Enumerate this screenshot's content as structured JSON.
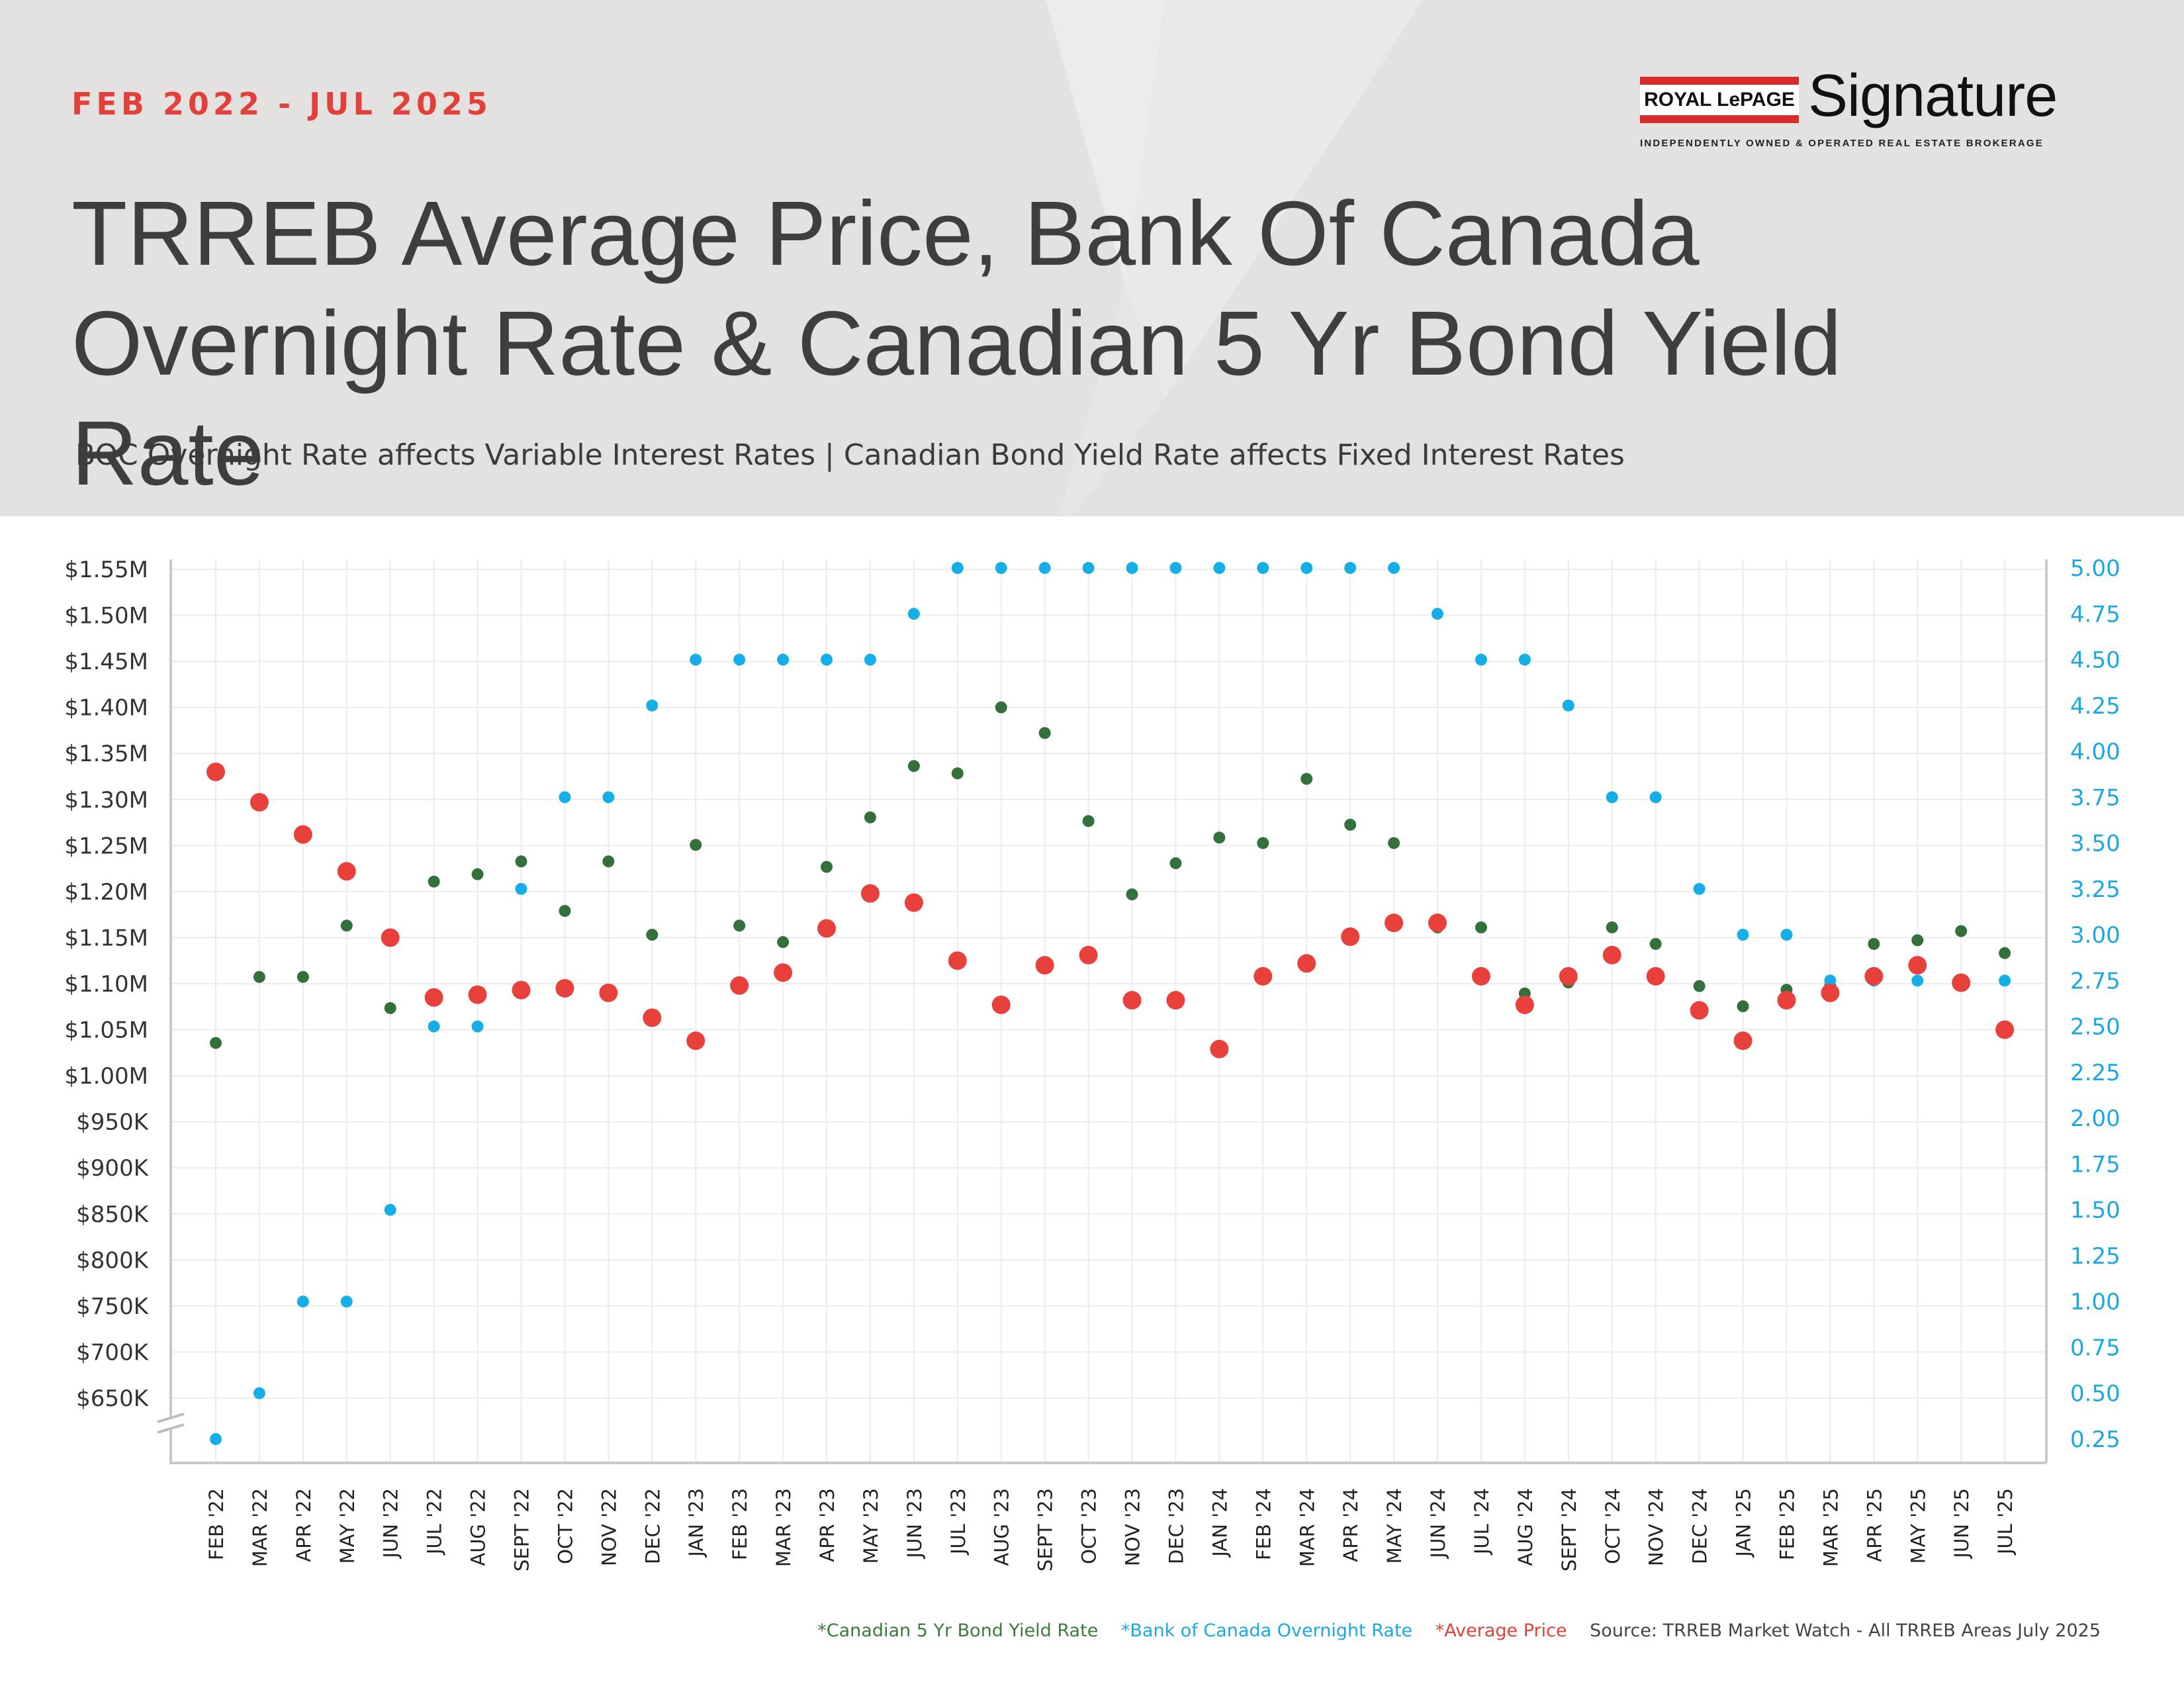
{
  "header": {
    "date_range": "FEB 2022 - JUL 2025",
    "title": "TRREB Average Price, Bank Of Canada Overnight Rate & Canadian 5 Yr Bond Yield Rate",
    "subtitle": "BOC Overnight Rate affects Variable Interest Rates  |  Canadian Bond Yield Rate affects Fixed Interest Rates"
  },
  "logo": {
    "box_text": "ROYAL LePAGE",
    "wordmark": "Signature",
    "tagline": "INDEPENDENTLY OWNED & OPERATED REAL ESTATE BROKERAGE"
  },
  "legend": {
    "bond": "*Canadian 5 Yr Bond Yield Rate",
    "boc": "*Bank of Canada Overnight Rate",
    "avg": "*Average Price",
    "source": "Source: TRREB Market Watch - All TRREB Areas July 2025"
  },
  "colors": {
    "average_price": "#e8413b",
    "boc_rate": "#16aee6",
    "bond_yield": "#34703a",
    "header_bg": "#e4e2e0",
    "accent": "#e2403a"
  },
  "chart_data": {
    "type": "scatter",
    "categories": [
      "FEB '22",
      "MAR '22",
      "APR '22",
      "MAY '22",
      "JUN '22",
      "JUL '22",
      "AUG '22",
      "SEPT '22",
      "OCT '22",
      "NOV '22",
      "DEC '22",
      "JAN '23",
      "FEB '23",
      "MAR '23",
      "APR '23",
      "MAY '23",
      "JUN '23",
      "JUL '23",
      "AUG '23",
      "SEPT '23",
      "OCT '23",
      "NOV '23",
      "DEC '23",
      "JAN '24",
      "FEB '24",
      "MAR '24",
      "APR '24",
      "MAY '24",
      "JUN '24",
      "JUL '24",
      "AUG '24",
      "SEPT '24",
      "OCT '24",
      "NOV '24",
      "DEC '24",
      "JAN '25",
      "FEB '25",
      "MAR '25",
      "APR '25",
      "MAY '25",
      "JUN '25",
      "JUL '25"
    ],
    "left_axis": {
      "ticks": [
        650000,
        700000,
        750000,
        800000,
        850000,
        900000,
        950000,
        1000000,
        1050000,
        1100000,
        1150000,
        1200000,
        1250000,
        1300000,
        1350000,
        1400000,
        1450000,
        1500000,
        1550000
      ],
      "tick_labels": [
        "$650K",
        "$700K",
        "$750K",
        "$800K",
        "$850K",
        "$900K",
        "$950K",
        "$1.00M",
        "$1.05M",
        "$1.10M",
        "$1.15M",
        "$1.20M",
        "$1.25M",
        "$1.30M",
        "$1.35M",
        "$1.40M",
        "$1.45M",
        "$1.50M",
        "$1.55M"
      ],
      "axis_break_below": "$650K"
    },
    "right_axis": {
      "ticks": [
        0.25,
        0.5,
        0.75,
        1.0,
        1.25,
        1.5,
        1.75,
        2.0,
        2.25,
        2.5,
        2.75,
        3.0,
        3.25,
        3.5,
        3.75,
        4.0,
        4.25,
        4.5,
        4.75,
        5.0
      ],
      "tick_labels": [
        "0.25",
        "0.50",
        "0.75",
        "1.00",
        "1.25",
        "1.50",
        "1.75",
        "2.00",
        "2.25",
        "2.50",
        "2.75",
        "3.00",
        "3.25",
        "3.50",
        "3.75",
        "4.00",
        "4.25",
        "4.50",
        "4.75",
        "5.00"
      ]
    },
    "series": [
      {
        "name": "Average Price",
        "axis": "left",
        "values": [
          1330000,
          1297000,
          1262000,
          1222000,
          1150000,
          1085000,
          1088000,
          1093000,
          1095000,
          1090000,
          1063000,
          1038000,
          1098000,
          1112000,
          1160000,
          1198000,
          1188000,
          1125000,
          1077000,
          1120000,
          1131000,
          1082000,
          1082000,
          1029000,
          1108000,
          1122000,
          1151000,
          1166000,
          1166000,
          1108000,
          1077000,
          1108000,
          1131000,
          1108000,
          1071000,
          1038000,
          1082000,
          1090000,
          1108000,
          1120000,
          1101000,
          1050000
        ]
      },
      {
        "name": "Bank of Canada Overnight Rate",
        "axis": "right",
        "values": [
          0.25,
          0.5,
          1.0,
          1.0,
          1.5,
          2.5,
          2.5,
          3.25,
          3.75,
          3.75,
          4.25,
          4.5,
          4.5,
          4.5,
          4.5,
          4.5,
          4.75,
          5.0,
          5.0,
          5.0,
          5.0,
          5.0,
          5.0,
          5.0,
          5.0,
          5.0,
          5.0,
          5.0,
          4.75,
          4.5,
          4.5,
          4.25,
          3.75,
          3.75,
          3.25,
          3.0,
          3.0,
          2.75,
          2.75,
          2.75,
          2.75,
          2.75
        ]
      },
      {
        "name": "Canadian 5 Yr Bond Yield Rate",
        "axis": "right",
        "values": [
          2.41,
          2.77,
          2.77,
          3.05,
          2.6,
          3.29,
          3.33,
          3.4,
          3.13,
          3.4,
          3.0,
          3.49,
          3.05,
          2.96,
          3.37,
          3.64,
          3.92,
          3.88,
          4.24,
          4.1,
          3.62,
          3.22,
          3.39,
          3.53,
          3.5,
          3.85,
          3.6,
          3.5,
          3.04,
          3.04,
          2.68,
          2.74,
          3.04,
          2.95,
          2.72,
          2.61,
          2.7,
          2.72,
          2.95,
          2.97,
          3.02,
          2.9
        ]
      }
    ]
  }
}
